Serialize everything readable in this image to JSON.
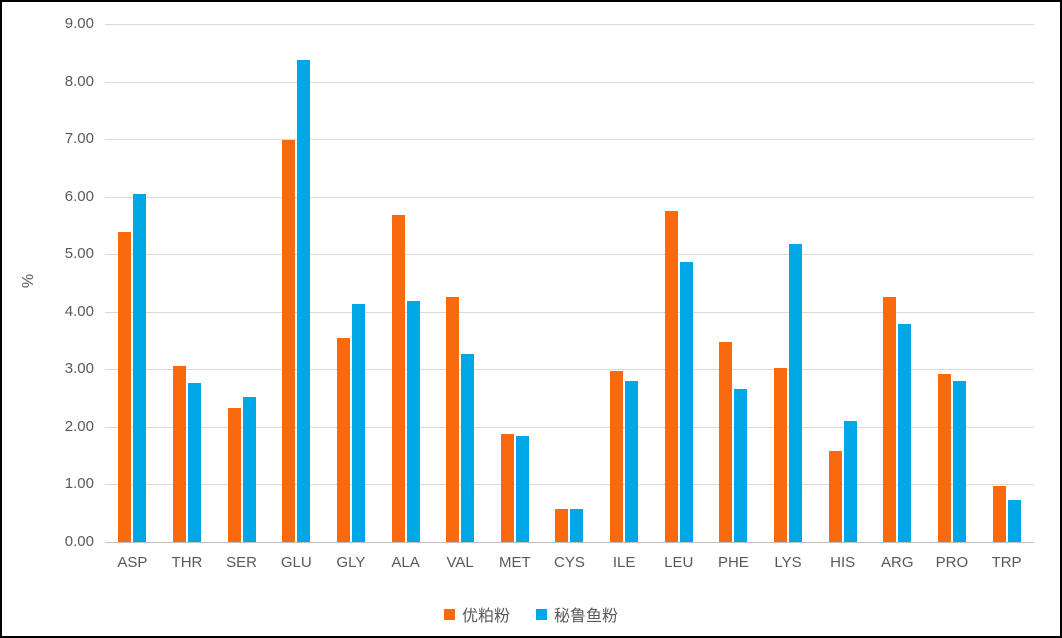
{
  "colors": {
    "series1": "#F9690E",
    "series2": "#00A7E6",
    "gridline": "#d9d9d9",
    "axis_line": "#bfbfbf",
    "text": "#595959",
    "frame_border": "#000000",
    "background": "#ffffff"
  },
  "chart_data": {
    "type": "bar",
    "title": "",
    "xlabel": "",
    "ylabel": "%",
    "ylim": [
      0,
      9
    ],
    "ytick_step": 1,
    "ytick_labels": [
      "0.00",
      "1.00",
      "2.00",
      "3.00",
      "4.00",
      "5.00",
      "6.00",
      "7.00",
      "8.00",
      "9.00"
    ],
    "grid": true,
    "legend_position": "bottom",
    "categories": [
      "ASP",
      "THR",
      "SER",
      "GLU",
      "GLY",
      "ALA",
      "VAL",
      "MET",
      "CYS",
      "ILE",
      "LEU",
      "PHE",
      "LYS",
      "HIS",
      "ARG",
      "PRO",
      "TRP"
    ],
    "series": [
      {
        "name": "优粕粉",
        "color": "#F9690E",
        "values": [
          5.38,
          3.06,
          2.32,
          6.98,
          3.55,
          5.68,
          4.26,
          1.87,
          0.58,
          2.98,
          5.75,
          3.47,
          3.02,
          1.58,
          4.26,
          2.92,
          0.97
        ]
      },
      {
        "name": "秘鲁鱼粉",
        "color": "#00A7E6",
        "values": [
          6.05,
          2.77,
          2.52,
          8.38,
          4.14,
          4.19,
          3.27,
          1.85,
          0.57,
          2.8,
          4.86,
          2.66,
          5.18,
          2.1,
          3.79,
          2.8,
          0.73
        ]
      }
    ]
  }
}
